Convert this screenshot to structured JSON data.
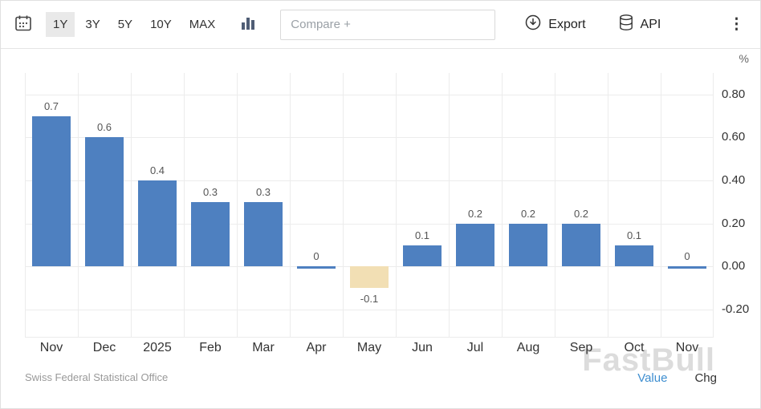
{
  "toolbar": {
    "ranges": [
      {
        "label": "1Y",
        "active": true
      },
      {
        "label": "3Y",
        "active": false
      },
      {
        "label": "5Y",
        "active": false
      },
      {
        "label": "10Y",
        "active": false
      },
      {
        "label": "MAX",
        "active": false
      }
    ],
    "compare_label": "Compare +",
    "export_label": "Export",
    "api_label": "API",
    "menu_glyph": "⋮"
  },
  "icons": {
    "calendar": "calendar-icon",
    "chart_type": "bar-chart-icon",
    "export": "download-circle-icon",
    "api": "database-icon",
    "menu": "kebab-menu-icon"
  },
  "chart_data": {
    "type": "bar",
    "title": "",
    "unit": "%",
    "categories": [
      "Nov",
      "Dec",
      "2025",
      "Feb",
      "Mar",
      "Apr",
      "May",
      "Jun",
      "Jul",
      "Aug",
      "Sep",
      "Oct",
      "Nov"
    ],
    "values": [
      0.7,
      0.6,
      0.4,
      0.3,
      0.3,
      0,
      -0.1,
      0.1,
      0.2,
      0.2,
      0.2,
      0.1,
      0
    ],
    "labels": [
      "0.7",
      "0.6",
      "0.4",
      "0.3",
      "0.3",
      "0",
      "-0.1",
      "0.1",
      "0.2",
      "0.2",
      "0.2",
      "0.1",
      "0"
    ],
    "highlighted_index": 6,
    "y_ticks": [
      0.8,
      0.6,
      0.4,
      0.2,
      0.0,
      -0.2
    ],
    "y_tick_labels": [
      "0.80",
      "0.60",
      "0.40",
      "0.20",
      "0.00",
      "-0.20"
    ],
    "ylim": [
      -0.33,
      0.9
    ],
    "grid": true,
    "legend": "none",
    "bar_color": "#4e80c0",
    "highlight_color": "#f2dfb4"
  },
  "footer": {
    "source": "Swiss Federal Statistical Office",
    "value_label": "Value",
    "chg_label": "Chg",
    "value_color": "#3e8ed0"
  },
  "watermark": "FastBull"
}
